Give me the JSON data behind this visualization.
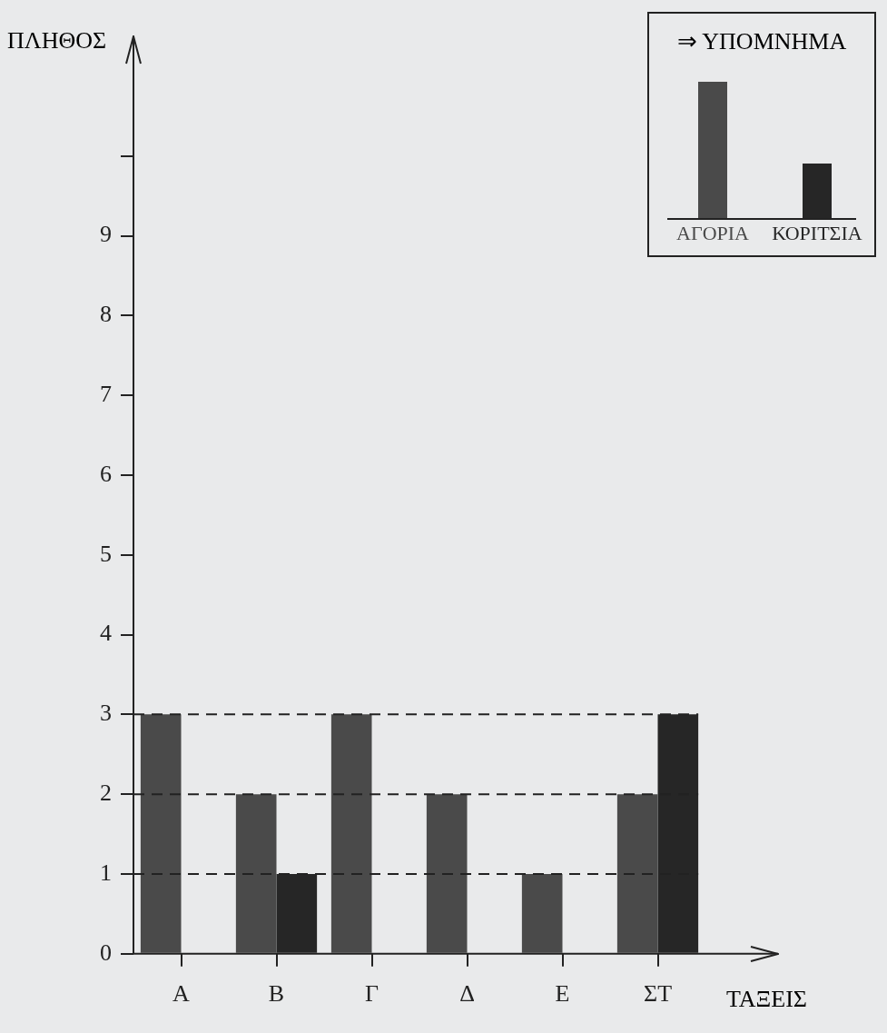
{
  "chart_data": {
    "type": "bar",
    "xlabel": "ΤΑΞΕΙΣ",
    "ylabel": "ΠΛΗΘΟΣ",
    "legend_title": "⇒ ΥΠΟΜΝΗΜΑ",
    "legend": "top right",
    "grid": false,
    "categories": [
      "Α",
      "Β",
      "Γ",
      "Δ",
      "Ε",
      "ΣΤ"
    ],
    "series": [
      {
        "name": "ΑΓΟΡΙΑ",
        "color": "#4a4a4a",
        "values": [
          3,
          2,
          3,
          2,
          1,
          2
        ]
      },
      {
        "name": "ΚΟΡΙΤΣΙΑ",
        "color": "#262626",
        "values": [
          0,
          1,
          0,
          0,
          0,
          3
        ]
      }
    ],
    "ylim": [
      0,
      11.5
    ],
    "yticks": [
      0,
      1,
      2,
      3,
      4,
      5,
      6,
      7,
      8,
      9,
      {
        "value": 10,
        "label": null
      }
    ],
    "ref_lines": [
      {
        "axis": "y",
        "value": 1,
        "line_style": "dashed"
      },
      {
        "axis": "y",
        "value": 2,
        "line_style": "dashed"
      },
      {
        "axis": "y",
        "value": 3,
        "line_style": "dashed"
      }
    ]
  }
}
